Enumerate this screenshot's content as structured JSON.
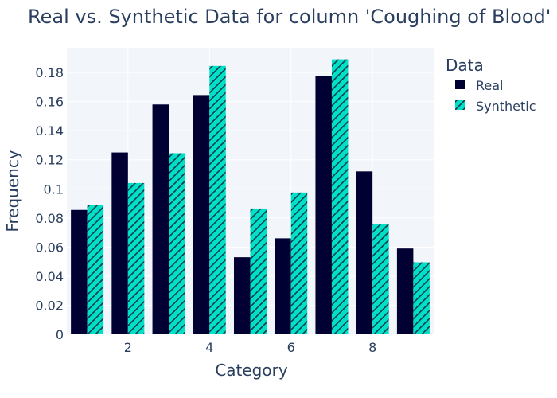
{
  "chart_data": {
    "type": "bar",
    "title": "Real vs. Synthetic Data for column 'Coughing of Blood'",
    "xlabel": "Category",
    "ylabel": "Frequency",
    "x": [
      1,
      2,
      3,
      4,
      5,
      6,
      7,
      8,
      9
    ],
    "xticks": [
      "2",
      "4",
      "6",
      "8"
    ],
    "xtick_values": [
      2,
      4,
      6,
      8
    ],
    "yticks": [
      "0",
      "0.02",
      "0.04",
      "0.06",
      "0.08",
      "0.1",
      "0.12",
      "0.14",
      "0.16",
      "0.18"
    ],
    "ytick_values": [
      0,
      0.02,
      0.04,
      0.06,
      0.08,
      0.1,
      0.12,
      0.14,
      0.16,
      0.18
    ],
    "ylim": [
      0,
      0.197
    ],
    "xlim": [
      0.5,
      9.5
    ],
    "grid": true,
    "legend": {
      "title": "Data",
      "placement": "right"
    },
    "series": [
      {
        "name": "Real",
        "color": "#000033",
        "pattern": "none",
        "values": [
          0.0855,
          0.125,
          0.158,
          0.1645,
          0.053,
          0.066,
          0.1775,
          0.112,
          0.059
        ]
      },
      {
        "name": "Synthetic",
        "color": "#00e0c8",
        "pattern": "diagonal-hatch",
        "values": [
          0.089,
          0.104,
          0.1245,
          0.1845,
          0.0865,
          0.0975,
          0.189,
          0.0755,
          0.0495
        ]
      }
    ]
  }
}
